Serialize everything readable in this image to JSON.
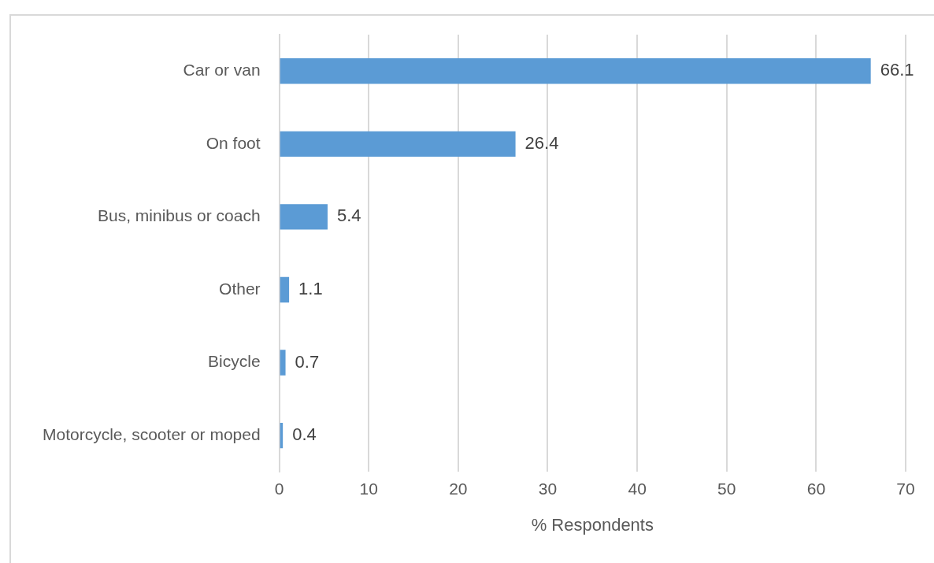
{
  "chart_data": {
    "type": "bar",
    "orientation": "horizontal",
    "xlabel": "% Respondents",
    "categories": [
      "Car or van",
      "On foot",
      "Bus, minibus or coach",
      "Other",
      "Bicycle",
      "Motorcycle, scooter or moped"
    ],
    "values": [
      66.1,
      26.4,
      5.4,
      1.1,
      0.7,
      0.4
    ],
    "color": "#5b9bd5",
    "xlim": [
      0,
      70
    ],
    "xticks": [
      0,
      10,
      20,
      30,
      40,
      50,
      60,
      70
    ],
    "grid": "x",
    "data_labels": true,
    "legend": false
  }
}
